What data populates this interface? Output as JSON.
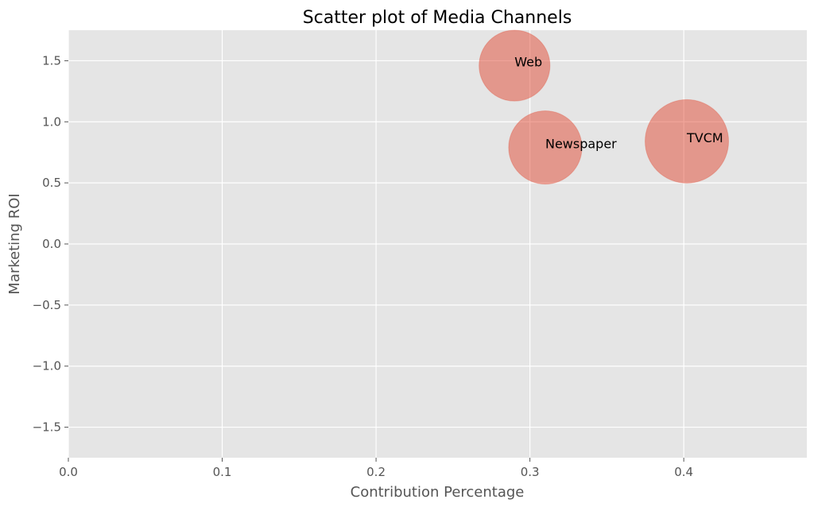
{
  "chart_data": {
    "type": "scatter",
    "title": "Scatter plot of Media Channels",
    "xlabel": "Contribution Percentage",
    "ylabel": "Marketing ROI",
    "xlim": [
      0.0,
      0.48
    ],
    "ylim": [
      -1.75,
      1.75
    ],
    "xticks": [
      0.0,
      0.1,
      0.2,
      0.3,
      0.4
    ],
    "xtick_labels": [
      "0.0",
      "0.1",
      "0.2",
      "0.3",
      "0.4"
    ],
    "yticks": [
      -1.5,
      -1.0,
      -0.5,
      0.0,
      0.5,
      1.0,
      1.5
    ],
    "ytick_labels": [
      "−1.5",
      "−1.0",
      "−0.5",
      "0.0",
      "0.5",
      "1.0",
      "1.5"
    ],
    "grid": true,
    "points": [
      {
        "label": "Web",
        "x": 0.29,
        "y": 1.46,
        "size": 0.29
      },
      {
        "label": "Newspaper",
        "x": 0.31,
        "y": 0.79,
        "size": 0.31
      },
      {
        "label": "TVCM",
        "x": 0.402,
        "y": 0.84,
        "size": 0.402
      }
    ],
    "colors": {
      "background": "#e5e5e5",
      "grid": "#ffffff",
      "marker": "#e24a33"
    }
  }
}
